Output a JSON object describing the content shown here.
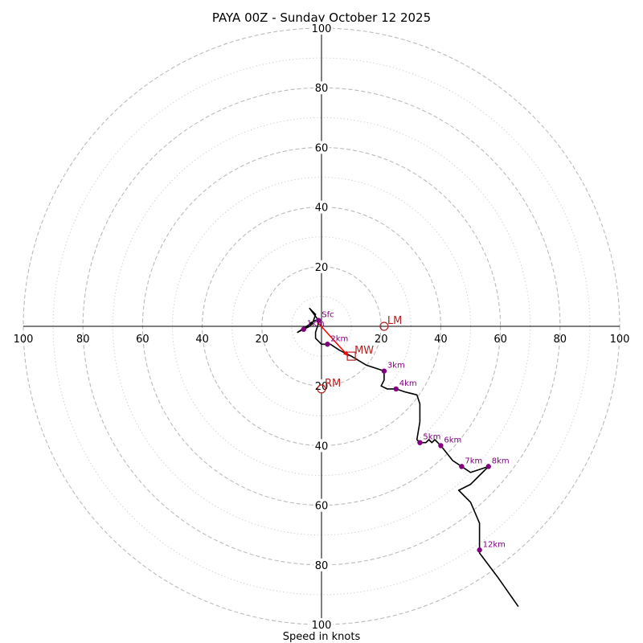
{
  "chart_data": {
    "type": "hodograph",
    "title": "PAYA 00Z - Sunday October 12 2025",
    "xlabel": "Speed in knots",
    "max_speed": 100,
    "major_rings": [
      20,
      40,
      60,
      80,
      100
    ],
    "minor_rings": [
      10,
      30,
      50,
      70,
      90
    ],
    "axis_ticks": [
      {
        "value": 100,
        "label": "100"
      },
      {
        "value": 80,
        "label": "80"
      },
      {
        "value": 60,
        "label": "60"
      },
      {
        "value": 40,
        "label": "40"
      },
      {
        "value": 20,
        "label": "20"
      }
    ],
    "colors": {
      "trace": "#000000",
      "height_marker": "#800080",
      "motion": "#b22222",
      "shear_vector": "#ff0000",
      "ring_major": "#bbbbbb",
      "ring_minor": "#cccccc"
    },
    "trace": [
      [
        -4,
        1
      ],
      [
        -2,
        2
      ],
      [
        -8,
        -2
      ],
      [
        -6,
        -1
      ],
      [
        -4,
        0
      ],
      [
        -3,
        1
      ],
      [
        -2,
        4
      ],
      [
        -4,
        6
      ],
      [
        -1,
        2
      ],
      [
        -1,
        1
      ],
      [
        -2,
        -2
      ],
      [
        -2,
        -4
      ],
      [
        0,
        -6
      ],
      [
        3,
        -6
      ],
      [
        6,
        -8
      ],
      [
        10,
        -10
      ],
      [
        15,
        -13
      ],
      [
        18,
        -14
      ],
      [
        21,
        -15
      ],
      [
        21,
        -18
      ],
      [
        20,
        -20
      ],
      [
        22,
        -21
      ],
      [
        25,
        -21
      ],
      [
        28,
        -22
      ],
      [
        32,
        -23
      ],
      [
        33,
        -26
      ],
      [
        33,
        -32
      ],
      [
        32,
        -38
      ],
      [
        33,
        -39
      ],
      [
        35,
        -39
      ],
      [
        36,
        -38
      ],
      [
        37,
        -39
      ],
      [
        38,
        -38
      ],
      [
        40,
        -40
      ],
      [
        44,
        -45
      ],
      [
        47,
        -47
      ],
      [
        50,
        -49
      ],
      [
        53,
        -48
      ],
      [
        56,
        -47
      ],
      [
        53,
        -50
      ],
      [
        50,
        -53
      ],
      [
        46,
        -55
      ],
      [
        50,
        -59
      ],
      [
        53,
        -66
      ],
      [
        53,
        -76
      ],
      [
        59,
        -84
      ],
      [
        66,
        -94
      ]
    ],
    "height_markers": [
      {
        "label": "Sfc",
        "u": -1,
        "v": 2
      },
      {
        "label": "1km",
        "u": -6,
        "v": -1
      },
      {
        "label": "2km",
        "u": 2,
        "v": -6
      },
      {
        "label": "3km",
        "u": 21,
        "v": -15
      },
      {
        "label": "4km",
        "u": 25,
        "v": -21
      },
      {
        "label": "5km",
        "u": 33,
        "v": -39
      },
      {
        "label": "6km",
        "u": 40,
        "v": -40
      },
      {
        "label": "7km",
        "u": 47,
        "v": -47
      },
      {
        "label": "8km",
        "u": 56,
        "v": -47
      },
      {
        "label": "12km",
        "u": 53,
        "v": -75
      }
    ],
    "storm_motion": [
      {
        "label": "LM",
        "u": 21,
        "v": 0,
        "shape": "circle"
      },
      {
        "label": "RM",
        "u": 0,
        "v": -21,
        "shape": "circle"
      },
      {
        "label": "MW",
        "u": 10,
        "v": -10,
        "shape": "square"
      }
    ],
    "shear_vector": {
      "from": [
        -1,
        1
      ],
      "to": [
        9,
        -10
      ]
    }
  }
}
